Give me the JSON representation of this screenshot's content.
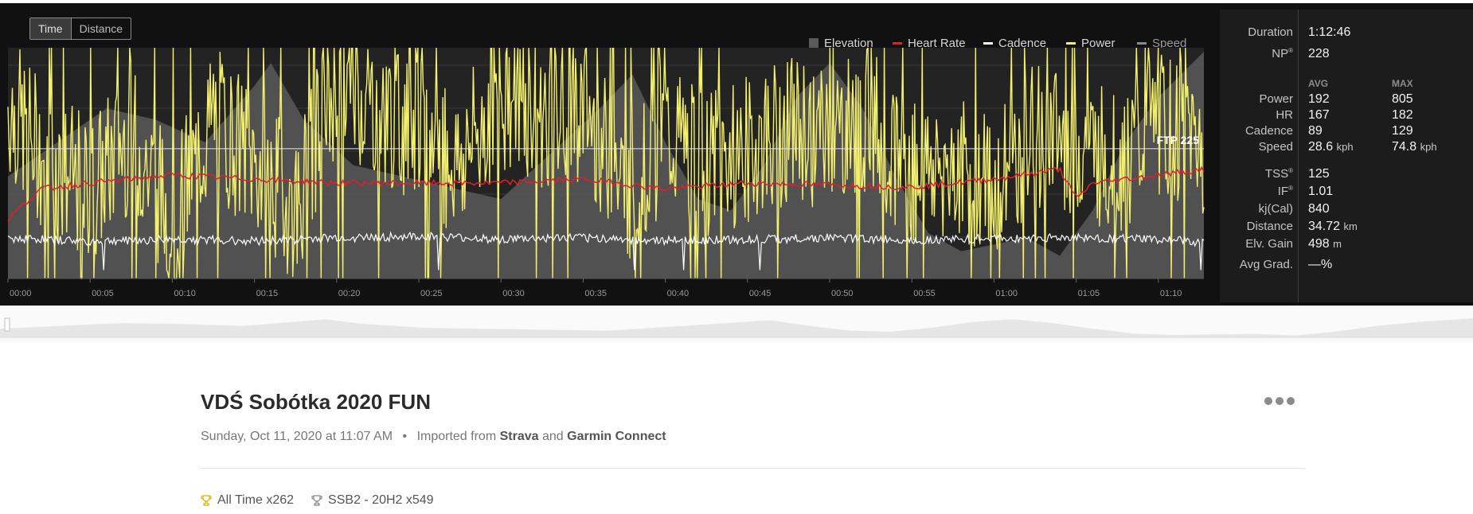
{
  "toggle": {
    "time": "Time",
    "distance": "Distance"
  },
  "legend": [
    {
      "label": "Elevation",
      "color": "#5a5a5a"
    },
    {
      "label": "Heart Rate",
      "color": "#e0202a"
    },
    {
      "label": "Cadence",
      "color": "#ffffff"
    },
    {
      "label": "Power",
      "color": "#f3f06e"
    },
    {
      "label": "Speed",
      "color": "#8a8a8a"
    }
  ],
  "ftp_label": "FTP 225",
  "stats": {
    "duration": {
      "label": "Duration",
      "value": "1:12:46"
    },
    "np": {
      "label": "NP",
      "value": "228"
    },
    "avg_header": "AVG",
    "max_header": "MAX",
    "rows": [
      {
        "label": "Power",
        "avg": "192",
        "max": "805"
      },
      {
        "label": "HR",
        "avg": "167",
        "max": "182"
      },
      {
        "label": "Cadence",
        "avg": "89",
        "max": "129"
      },
      {
        "label": "Speed",
        "avg": "28.6",
        "max": "74.8",
        "unit": "kph"
      }
    ],
    "tss": {
      "label": "TSS",
      "value": "125"
    },
    "if": {
      "label": "IF",
      "value": "1.01"
    },
    "kj": {
      "label": "kj(Cal)",
      "value": "840"
    },
    "distance": {
      "label": "Distance",
      "value": "34.72",
      "unit": "km"
    },
    "elv_gain": {
      "label": "Elv. Gain",
      "value": "498",
      "unit": "m"
    },
    "avg_grad": {
      "label": "Avg Grad.",
      "value": "—%"
    }
  },
  "activity": {
    "title": "VDŚ Sobótka 2020 FUN",
    "date": "Sunday, Oct 11, 2020 at 11:07 AM",
    "imported_text": "Imported from",
    "source1": "Strava",
    "and_text": "and",
    "source2": "Garmin Connect"
  },
  "badges": [
    {
      "label": "All Time x262"
    },
    {
      "label": "SSB2 - 20H2 x549"
    }
  ],
  "chart_data": {
    "type": "line",
    "x_unit": "elapsed time (mm:ss)",
    "x_ticks": [
      "00:00",
      "00:05",
      "00:10",
      "00:15",
      "00:20",
      "00:25",
      "00:30",
      "00:35",
      "00:40",
      "00:45",
      "00:50",
      "00:55",
      "01:00",
      "01:05",
      "01:10"
    ],
    "x_range_min": [
      0,
      72.77
    ],
    "ftp": 225,
    "series": [
      {
        "name": "Elevation",
        "color": "#5a5a5a",
        "type": "area",
        "x": [
          0,
          3,
          6,
          9,
          12,
          15,
          16,
          18,
          21,
          24,
          27,
          30,
          33,
          36,
          38,
          40,
          42,
          44,
          46,
          48,
          50,
          52,
          54,
          56,
          58,
          60,
          62,
          64,
          66,
          68,
          70,
          72.77
        ],
        "y": [
          0.45,
          0.6,
          0.75,
          0.7,
          0.6,
          0.85,
          0.95,
          0.7,
          0.5,
          0.45,
          0.4,
          0.35,
          0.55,
          0.75,
          0.9,
          0.6,
          0.35,
          0.3,
          0.5,
          0.8,
          0.95,
          0.75,
          0.45,
          0.2,
          0.12,
          0.15,
          0.18,
          0.1,
          0.3,
          0.6,
          0.8,
          1.0
        ]
      },
      {
        "name": "Heart Rate",
        "color": "#e0202a",
        "avg": 167,
        "max": 182,
        "x": [
          0,
          2,
          5,
          10,
          15,
          20,
          25,
          30,
          35,
          40,
          45,
          50,
          55,
          60,
          64,
          65,
          66,
          70,
          72.77
        ],
        "y": [
          150,
          165,
          168,
          172,
          170,
          168,
          168,
          168,
          170,
          165,
          168,
          167,
          166,
          170,
          175,
          160,
          168,
          172,
          175
        ]
      },
      {
        "name": "Cadence",
        "color": "#ffffff",
        "avg": 89,
        "max": 129,
        "x": [
          0,
          5,
          10,
          15,
          20,
          25,
          30,
          35,
          40,
          45,
          50,
          55,
          60,
          65,
          70,
          72.77
        ],
        "y": [
          90,
          85,
          88,
          86,
          90,
          92,
          88,
          90,
          86,
          88,
          90,
          87,
          89,
          90,
          88,
          84
        ]
      },
      {
        "name": "Power",
        "color": "#f3f06e",
        "avg": 192,
        "max": 805,
        "normalized": 228,
        "x": [
          0,
          2.5,
          5,
          7.5,
          10,
          12.5,
          15,
          17.5,
          20,
          22.5,
          25,
          27.5,
          30,
          32.5,
          35,
          37.5,
          40,
          42.5,
          45,
          47.5,
          50,
          52.5,
          55,
          57.5,
          60,
          62.5,
          65,
          67.5,
          70,
          72.77
        ],
        "y": [
          300,
          200,
          150,
          250,
          100,
          280,
          200,
          120,
          350,
          300,
          250,
          200,
          320,
          280,
          300,
          150,
          250,
          200,
          220,
          260,
          240,
          280,
          180,
          200,
          150,
          250,
          220,
          200,
          260,
          240
        ]
      },
      {
        "name": "Speed",
        "color": "#8a8a8a",
        "avg": 28.6,
        "max": 74.8,
        "x": [],
        "y": []
      }
    ]
  }
}
